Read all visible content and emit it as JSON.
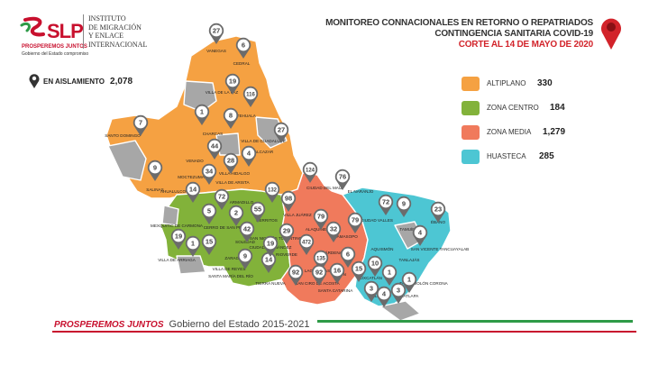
{
  "header": {
    "logo_text": "SLP",
    "logo_motto": "PROSPEREMOS JUNTOS",
    "logo_subtitle": "Gobierno del Estado compromiso",
    "institute": [
      "INSTITUTO",
      "DE MIGRACIÓN",
      "Y ENLACE",
      "INTERNACIONAL"
    ],
    "title_lines": [
      "MONITOREO CONNACIONALES EN RETORNO O REPATRIADOS",
      "CONTINGENCIA SANITARIA COVID-19",
      "CORTE AL 14 DE MAYO DE 2020"
    ]
  },
  "isolation": {
    "label": "EN AISLAMIENTO",
    "value": "2,078"
  },
  "legend": [
    {
      "label": "ALTIPLANO",
      "value": "330",
      "color": "#f5a142"
    },
    {
      "label": "ZONA CENTRO",
      "value": "184",
      "color": "#82b23a"
    },
    {
      "label": "ZONA MEDIA",
      "value": "1,279",
      "color": "#f07a5c"
    },
    {
      "label": "HUASTECA",
      "value": "285",
      "color": "#4dc6d3"
    }
  ],
  "colors": {
    "altiplano": "#f5a142",
    "centro": "#82b23a",
    "media": "#f07a5c",
    "huasteca": "#4dc6d3",
    "no_data": "#a7a7a7",
    "pin": "#6b6b6b",
    "accent_red": "#c8102e"
  },
  "markers": [
    {
      "id": "vanegas",
      "value": "27"
    },
    {
      "id": "cedral",
      "value": "6"
    },
    {
      "id": "villa-de-la-paz",
      "value": "19"
    },
    {
      "id": "matehuala-a",
      "value": "1"
    },
    {
      "id": "matehuala",
      "value": "116"
    },
    {
      "id": "charcas",
      "value": "8"
    },
    {
      "id": "santo-domingo",
      "value": "7"
    },
    {
      "id": "venado",
      "value": "44"
    },
    {
      "id": "villa-de-guadalupe",
      "value": "27"
    },
    {
      "id": "guadalcazar-a",
      "value": "4"
    },
    {
      "id": "guadalcazar",
      "value": "28"
    },
    {
      "id": "salinas",
      "value": "9"
    },
    {
      "id": "moctezuma",
      "value": "34"
    },
    {
      "id": "villa-de-arista",
      "value": "14"
    },
    {
      "id": "ahualulco",
      "value": "5"
    },
    {
      "id": "villa-hidalgo",
      "value": "72"
    },
    {
      "id": "mexquitic",
      "value": "2"
    },
    {
      "id": "armadillo",
      "value": "55"
    },
    {
      "id": "cerro-de-san-pedro",
      "value": "132"
    },
    {
      "id": "soledad",
      "value": "42"
    },
    {
      "id": "zaragoza",
      "value": "15"
    },
    {
      "id": "villa-de-arriaga",
      "value": "1"
    },
    {
      "id": "villa-de-reyes",
      "value": "19"
    },
    {
      "id": "santa-maria-del-rio",
      "value": "9"
    },
    {
      "id": "tierra-nueva",
      "value": "14"
    },
    {
      "id": "villa-juarez",
      "value": "98"
    },
    {
      "id": "cerritos",
      "value": "29"
    },
    {
      "id": "ciudad-fernandez",
      "value": "19"
    },
    {
      "id": "san-nicolas-tolentino",
      "value": "92"
    },
    {
      "id": "ciudad-del-maiz",
      "value": "124"
    },
    {
      "id": "el-naranjo",
      "value": "76"
    },
    {
      "id": "alaquines",
      "value": "79"
    },
    {
      "id": "cardenas",
      "value": "32"
    },
    {
      "id": "rioverde",
      "value": "472"
    },
    {
      "id": "lagunillas",
      "value": "135"
    },
    {
      "id": "rayon",
      "value": "6"
    },
    {
      "id": "san-ciro",
      "value": "92"
    },
    {
      "id": "santa-catarina",
      "value": "16"
    },
    {
      "id": "tamasopo",
      "value": "79"
    },
    {
      "id": "ciudad-valles",
      "value": "72"
    },
    {
      "id": "tamuin",
      "value": "9"
    },
    {
      "id": "ebano",
      "value": "23"
    },
    {
      "id": "san-vicente",
      "value": "4"
    },
    {
      "id": "aquismon",
      "value": "10"
    },
    {
      "id": "coxcatlan",
      "value": "15"
    },
    {
      "id": "tanlajas",
      "value": "1"
    },
    {
      "id": "tancanhuitz",
      "value": "3"
    },
    {
      "id": "xilitla",
      "value": "4"
    },
    {
      "id": "tampamolon",
      "value": "3"
    },
    {
      "id": "matlapa",
      "value": "1"
    }
  ],
  "place_labels": [
    "VANEGAS",
    "CEDRAL",
    "VILLA DE LA PAZ",
    "MATEHUALA",
    "CHARCAS",
    "SANTO DOMINGO",
    "VILLA DE GUADALUPE",
    "GUADALCAZAR",
    "VENADO",
    "VILLA HIDALGO",
    "VILLA DE ARISTA",
    "SALINAS",
    "MOCTEZUMA",
    "AHUALULCO",
    "MEXQUITIC DE CARMONA",
    "ARMADILLO",
    "CERRO DE SAN PEDRO",
    "SOLEDAD",
    "ZARAGOZA",
    "VILLA DE ARRIAGA",
    "VILLA DE REYES",
    "SANTA MARÍA DEL RÍO",
    "TIERRA NUEVA",
    "VILLA JUÁREZ",
    "CERRITOS",
    "SAN NICOLÁS TOLENTINO",
    "CIUDAD FERNÁNDEZ",
    "RIOVERDE",
    "CIUDAD DEL MAÍZ",
    "EL NARANJO",
    "ALAQUINES",
    "CÁRDENAS",
    "TAMASOPO",
    "LAGUNILLAS",
    "RAYÓN",
    "SAN CIRO DE ACOSTA",
    "SANTA CATARINA",
    "CIUDAD VALLES",
    "TAMUÍN",
    "ÉBANO",
    "SAN VICENTE TANCUAYALAB",
    "AQUISMÓN",
    "TANLAJÁS",
    "COXCATLÁN",
    "XILITLA",
    "TAMPAMOLÓN CORONA",
    "MATLAPA"
  ],
  "footer": {
    "motto": "PROSPEREMOS JUNTOS",
    "government": "Gobierno del Estado 2015-2021"
  }
}
